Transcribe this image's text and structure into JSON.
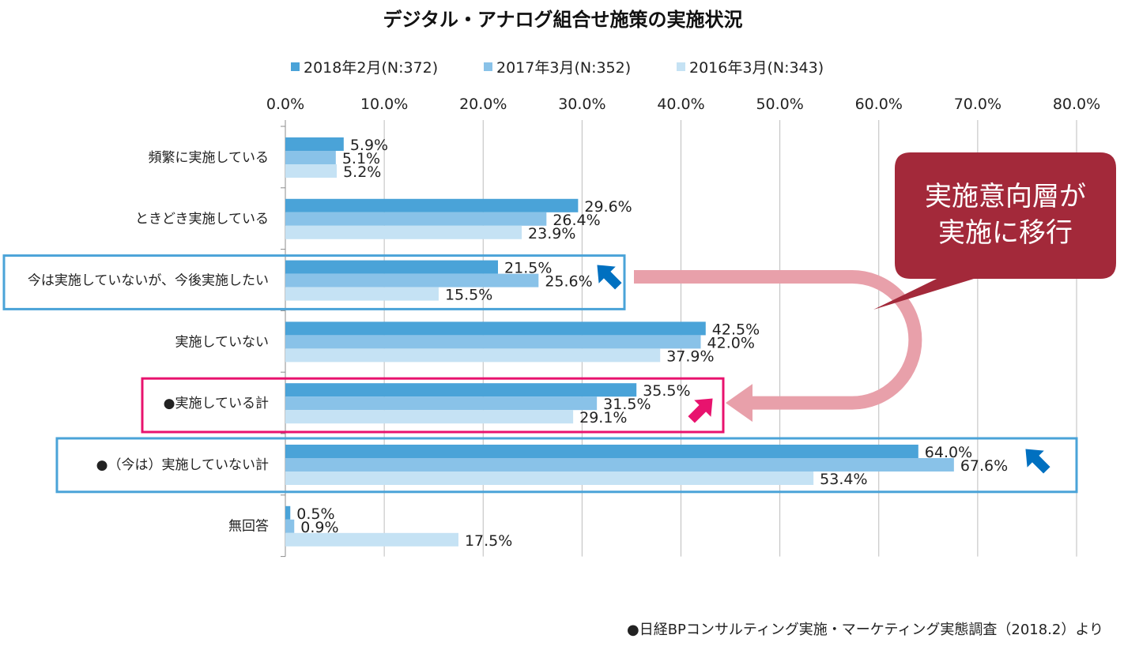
{
  "chart_data": {
    "type": "bar",
    "orientation": "horizontal",
    "title": "デジタル・アナログ組合せ施策の実施状況",
    "xlim": [
      0,
      80
    ],
    "x_ticks": [
      "0.0%",
      "10.0%",
      "20.0%",
      "30.0%",
      "40.0%",
      "50.0%",
      "60.0%",
      "70.0%",
      "80.0%"
    ],
    "grid": true,
    "legend_position": "top",
    "categories": [
      "頻繁に実施している",
      "ときどき実施している",
      "今は実施していないが、今後実施したい",
      "実施していない",
      "●実施している計",
      "●（今は）実施していない計",
      "無回答"
    ],
    "series": [
      {
        "name": "2018年2月(N:372)",
        "color": "#4aa3d8",
        "values": [
          5.9,
          29.6,
          21.5,
          42.5,
          35.5,
          64.0,
          0.5
        ],
        "labels": [
          "5.9%",
          "29.6%",
          "21.5%",
          "42.5%",
          "35.5%",
          "64.0%",
          "0.5%"
        ]
      },
      {
        "name": "2017年3月(N:352)",
        "color": "#89c2e8",
        "values": [
          5.1,
          26.4,
          25.6,
          42.0,
          31.5,
          67.6,
          0.9
        ],
        "labels": [
          "5.1%",
          "26.4%",
          "25.6%",
          "42.0%",
          "31.5%",
          "67.6%",
          "0.9%"
        ]
      },
      {
        "name": "2016年3月(N:343)",
        "color": "#c5e2f4",
        "values": [
          5.2,
          23.9,
          15.5,
          37.9,
          29.1,
          53.4,
          17.5
        ],
        "labels": [
          "5.2%",
          "23.9%",
          "15.5%",
          "37.9%",
          "29.1%",
          "53.4%",
          "17.5%"
        ]
      }
    ],
    "annotations": {
      "callout_line1": "実施意向層が",
      "callout_line2": "実施に移行",
      "source": "●日経BPコンサルティング実施・マーケティング実態調査（2018.2）より"
    },
    "colors": {
      "highlight_blue": "#4aa3d8",
      "highlight_pink": "#e8136e",
      "callout": "#a3293a",
      "arrow_band": "#e8a0aa",
      "arrow_blue": "#0070c0"
    }
  }
}
